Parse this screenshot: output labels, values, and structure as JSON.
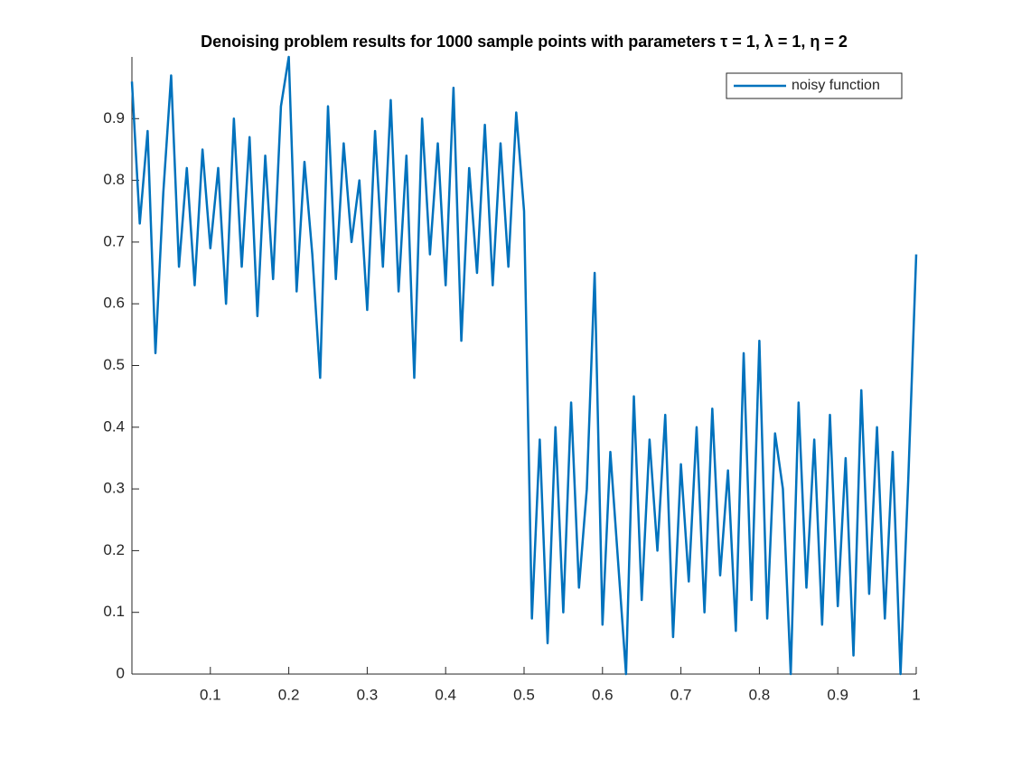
{
  "chart_data": {
    "type": "line",
    "title": "Denoising problem results for 1000 sample points with parameters τ = 1, λ = 1, η = 2",
    "x": [
      0,
      0.01,
      0.02,
      0.03,
      0.04,
      0.05,
      0.06,
      0.07,
      0.08,
      0.09,
      0.1,
      0.11,
      0.12,
      0.13,
      0.14,
      0.15,
      0.16,
      0.17,
      0.18,
      0.19,
      0.2,
      0.21,
      0.22,
      0.23,
      0.24,
      0.25,
      0.26,
      0.27,
      0.28,
      0.29,
      0.3,
      0.31,
      0.32,
      0.33,
      0.34,
      0.35,
      0.36,
      0.37,
      0.38,
      0.39,
      0.4,
      0.41,
      0.42,
      0.43,
      0.44,
      0.45,
      0.46,
      0.47,
      0.48,
      0.49,
      0.5,
      0.51,
      0.52,
      0.53,
      0.54,
      0.55,
      0.56,
      0.57,
      0.58,
      0.59,
      0.6,
      0.61,
      0.62,
      0.63,
      0.64,
      0.65,
      0.66,
      0.67,
      0.68,
      0.69,
      0.7,
      0.71,
      0.72,
      0.73,
      0.74,
      0.75,
      0.76,
      0.77,
      0.78,
      0.79,
      0.8,
      0.81,
      0.82,
      0.83,
      0.84,
      0.85,
      0.86,
      0.87,
      0.88,
      0.89,
      0.9,
      0.91,
      0.92,
      0.93,
      0.94,
      0.95,
      0.96,
      0.97,
      0.98,
      0.99,
      1
    ],
    "series": [
      {
        "name": "noisy function",
        "color": "#0072bd",
        "values": [
          0.96,
          0.73,
          0.88,
          0.52,
          0.78,
          0.97,
          0.66,
          0.82,
          0.63,
          0.85,
          0.69,
          0.82,
          0.6,
          0.9,
          0.66,
          0.87,
          0.58,
          0.84,
          0.64,
          0.92,
          1.0,
          0.62,
          0.83,
          0.68,
          0.48,
          0.92,
          0.64,
          0.86,
          0.7,
          0.8,
          0.59,
          0.88,
          0.66,
          0.93,
          0.62,
          0.84,
          0.48,
          0.9,
          0.68,
          0.86,
          0.63,
          0.95,
          0.54,
          0.82,
          0.65,
          0.89,
          0.63,
          0.86,
          0.66,
          0.91,
          0.75,
          0.09,
          0.38,
          0.05,
          0.4,
          0.1,
          0.44,
          0.14,
          0.3,
          0.65,
          0.08,
          0.36,
          0.18,
          0.0,
          0.45,
          0.12,
          0.38,
          0.2,
          0.42,
          0.06,
          0.34,
          0.15,
          0.4,
          0.1,
          0.43,
          0.16,
          0.33,
          0.07,
          0.52,
          0.12,
          0.54,
          0.09,
          0.39,
          0.3,
          0.0,
          0.44,
          0.14,
          0.38,
          0.08,
          0.42,
          0.11,
          0.35,
          0.03,
          0.46,
          0.13,
          0.4,
          0.09,
          0.36,
          0.0,
          0.32,
          0.68
        ]
      }
    ],
    "xlim": [
      0,
      1
    ],
    "ylim": [
      0,
      1
    ],
    "xticks": [
      0.1,
      0.2,
      0.3,
      0.4,
      0.5,
      0.6,
      0.7,
      0.8,
      0.9,
      1
    ],
    "yticks": [
      0,
      0.1,
      0.2,
      0.3,
      0.4,
      0.5,
      0.6,
      0.7,
      0.8,
      0.9
    ],
    "legend": "top-right"
  }
}
